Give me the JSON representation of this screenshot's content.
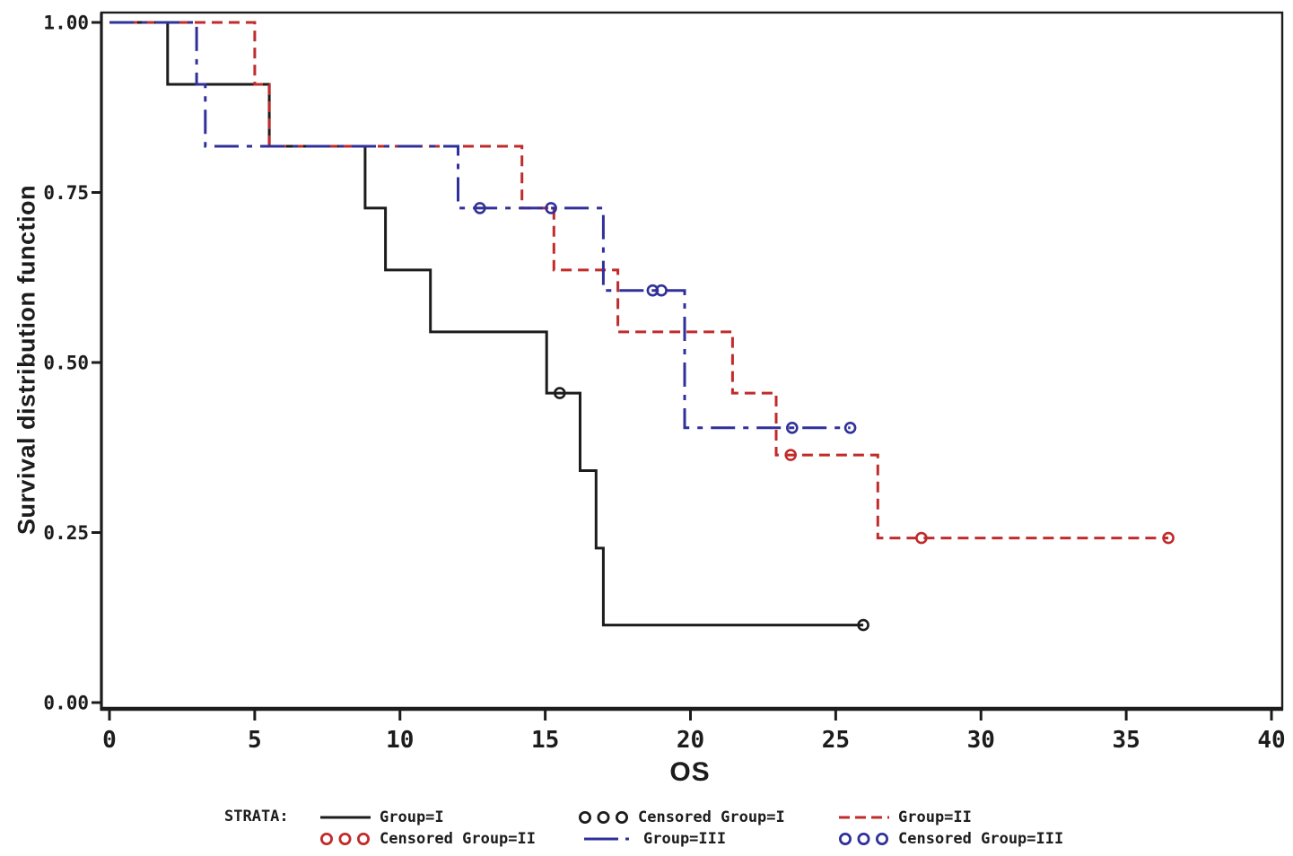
{
  "chart_data": {
    "type": "line",
    "subtype": "kaplan-meier-step-curves",
    "title": "",
    "xlabel": "OS",
    "ylabel": "Survival distribution function",
    "xlim": [
      0,
      40
    ],
    "ylim": [
      0,
      1
    ],
    "x_ticks": [
      0,
      5,
      10,
      15,
      20,
      25,
      30,
      35,
      40
    ],
    "y_ticks": [
      0,
      0.25,
      0.5,
      0.75,
      1
    ],
    "y_tick_labels": [
      "0.00",
      "0.25",
      "0.50",
      "0.75",
      "1.00"
    ],
    "grid": false,
    "axis_color": "#1c1c1c",
    "legend_position": "bottom",
    "series": [
      {
        "name": "Group=I",
        "slug": "group-i",
        "color": "#1c1c1c",
        "line_style": "solid",
        "steps": [
          [
            0,
            1
          ],
          [
            2,
            1
          ],
          [
            2,
            0.909
          ],
          [
            5.5,
            0.909
          ],
          [
            5.5,
            0.818
          ],
          [
            8.8,
            0.818
          ],
          [
            8.8,
            0.727
          ],
          [
            9.5,
            0.727
          ],
          [
            9.5,
            0.636
          ],
          [
            11.05,
            0.636
          ],
          [
            11.05,
            0.545
          ],
          [
            15.05,
            0.545
          ],
          [
            15.05,
            0.455
          ],
          [
            16.2,
            0.455
          ],
          [
            16.2,
            0.341
          ],
          [
            16.75,
            0.341
          ],
          [
            16.75,
            0.227
          ],
          [
            17,
            0.227
          ],
          [
            17,
            0.114
          ],
          [
            25.95,
            0.114
          ]
        ],
        "censored": [
          [
            15.5,
            0.455
          ],
          [
            25.95,
            0.114
          ]
        ]
      },
      {
        "name": "Group=II",
        "slug": "group-ii",
        "color": "#c02b2b",
        "line_style": "dash",
        "steps": [
          [
            0,
            1
          ],
          [
            5,
            1
          ],
          [
            5,
            0.909
          ],
          [
            5.5,
            0.909
          ],
          [
            5.5,
            0.818
          ],
          [
            14.2,
            0.818
          ],
          [
            14.2,
            0.727
          ],
          [
            15.3,
            0.727
          ],
          [
            15.3,
            0.636
          ],
          [
            17.5,
            0.636
          ],
          [
            17.5,
            0.545
          ],
          [
            21.45,
            0.545
          ],
          [
            21.45,
            0.455
          ],
          [
            22.95,
            0.455
          ],
          [
            22.95,
            0.364
          ],
          [
            26.45,
            0.364
          ],
          [
            26.45,
            0.242
          ],
          [
            36.45,
            0.242
          ]
        ],
        "censored": [
          [
            23.45,
            0.364
          ],
          [
            27.95,
            0.242
          ],
          [
            36.45,
            0.242
          ]
        ]
      },
      {
        "name": "Group=III",
        "slug": "group-iii",
        "color": "#30309a",
        "line_style": "dashdot",
        "steps": [
          [
            0,
            1
          ],
          [
            3,
            1
          ],
          [
            3,
            0.909
          ],
          [
            3.3,
            0.909
          ],
          [
            3.3,
            0.818
          ],
          [
            12,
            0.818
          ],
          [
            12,
            0.727
          ],
          [
            17,
            0.727
          ],
          [
            17,
            0.606
          ],
          [
            19.8,
            0.606
          ],
          [
            19.8,
            0.404
          ],
          [
            25.5,
            0.404
          ]
        ],
        "censored": [
          [
            12.75,
            0.727
          ],
          [
            15.2,
            0.727
          ],
          [
            18.7,
            0.606
          ],
          [
            19,
            0.606
          ],
          [
            23.5,
            0.404
          ],
          [
            25.5,
            0.404
          ]
        ]
      }
    ]
  },
  "legend": {
    "strata_label": "STRATA:",
    "rows": [
      [
        {
          "label": "Group=I",
          "sample": "line",
          "line_style": "solid",
          "color": "#1c1c1c"
        },
        {
          "label": "Censored Group=I",
          "sample": "circles",
          "color": "#1c1c1c"
        },
        {
          "label": "Group=II",
          "sample": "line",
          "line_style": "dash",
          "color": "#c02b2b"
        }
      ],
      [
        {
          "label": "Censored Group=II",
          "sample": "circles",
          "color": "#c02b2b"
        },
        {
          "label": "Group=III",
          "sample": "line",
          "line_style": "dashdot",
          "color": "#30309a"
        },
        {
          "label": "Censored Group=III",
          "sample": "circles",
          "color": "#30309a"
        }
      ]
    ]
  }
}
